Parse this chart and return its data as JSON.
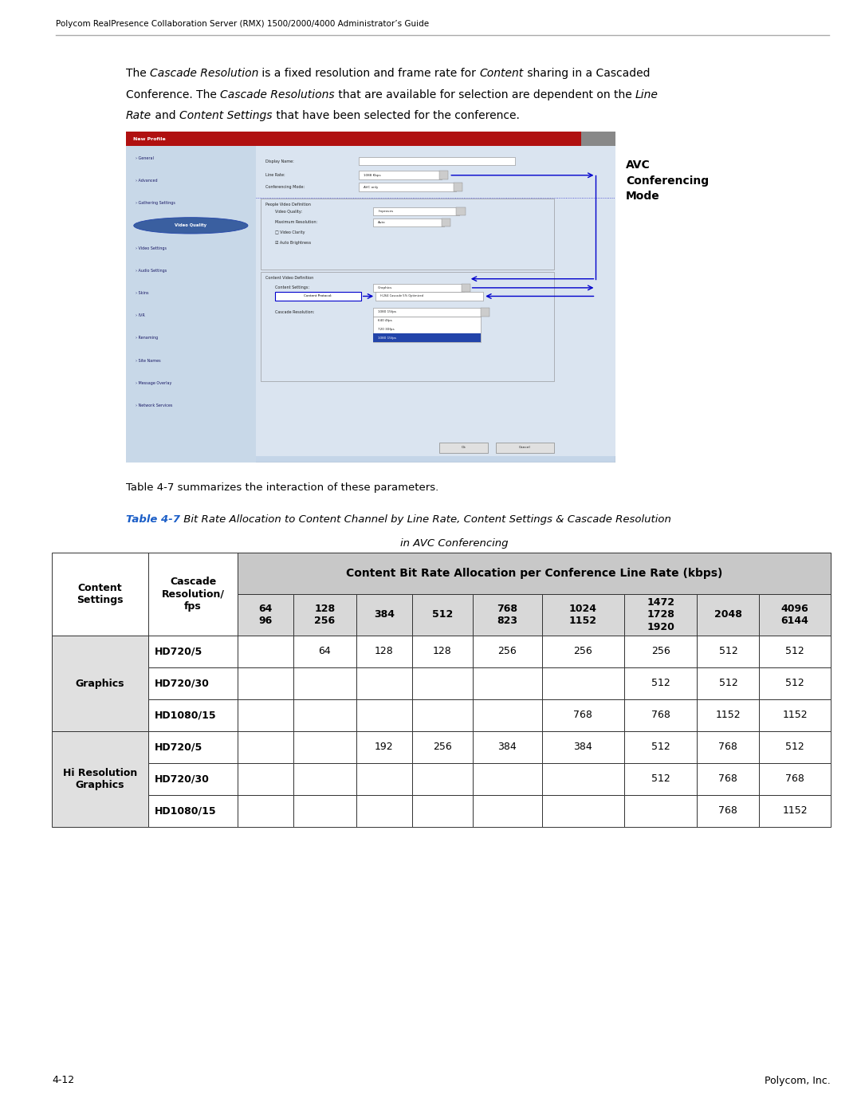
{
  "page_width": 10.8,
  "page_height": 13.97,
  "dpi": 100,
  "bg_color": "#ffffff",
  "header_text": "Polycom RealPresence Collaboration Server (RMX) 1500/2000/4000 Administrator’s Guide",
  "header_fontsize": 7.5,
  "caption_text": "Table 4-7 summarizes the interaction of these parameters.",
  "table_title_blue": "Table 4-7",
  "table_title_color": "#1b5ec7",
  "table_title_italic": " Bit Rate Allocation to Content Channel by Line Rate, Content Settings & Cascade Resolution",
  "table_title_line2": "in AVC Conferencing",
  "footer_left": "4-12",
  "footer_right": "Polycom, Inc.",
  "col_headers": [
    "64\n96",
    "128\n256",
    "384",
    "512",
    "768\n823",
    "1024\n1152",
    "1472\n1728\n1920",
    "2048",
    "4096\n6144"
  ],
  "col_header_main": "Content Bit Rate Allocation per Conference Line Rate (kbps)",
  "table_data": {
    "Graphics": {
      "HD720/5": [
        "",
        "64",
        "128",
        "128",
        "256",
        "256",
        "256",
        "512",
        "512"
      ],
      "HD720/30": [
        "",
        "",
        "",
        "",
        "",
        "",
        "512",
        "512",
        "512"
      ],
      "HD1080/15": [
        "",
        "",
        "",
        "",
        "",
        "768",
        "768",
        "1152",
        "1152"
      ]
    },
    "Hi Resolution\nGraphics": {
      "HD720/5": [
        "",
        "",
        "192",
        "256",
        "384",
        "384",
        "512",
        "768",
        "512"
      ],
      "HD720/30": [
        "",
        "",
        "",
        "",
        "",
        "",
        "512",
        "768",
        "768"
      ],
      "HD1080/15": [
        "",
        "",
        "",
        "",
        "",
        "",
        "",
        "768",
        "1152"
      ]
    }
  },
  "sidebar_label": "AVC\nConferencing\nMode",
  "nav_items": [
    "General",
    "Advanced",
    "Gathering Settings",
    "Video Quality",
    "Video Settings",
    "Audio Settings",
    "Skins",
    "IVR",
    "Renaming",
    "Site Names",
    "Message Overlay",
    "Network Services"
  ]
}
